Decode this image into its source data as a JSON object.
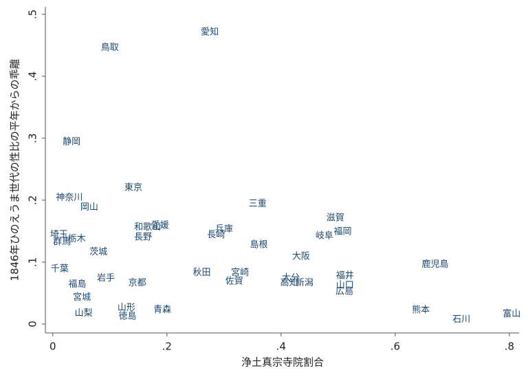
{
  "chart_data": {
    "type": "scatter",
    "x_label": "浄土真宗寺院割合",
    "y_label": "1846年ひのえうま世代の性比の平年からの乖離",
    "color": "#1a476f",
    "xlim": [
      -0.013,
      0.817
    ],
    "ylim": [
      -0.0144,
      0.512
    ],
    "xticks": [
      0,
      {
        "value": 0.2,
        "label": ".2"
      },
      {
        "value": 0.4,
        "label": ".4"
      },
      {
        "value": 0.6,
        "label": ".6"
      },
      {
        "value": 0.8,
        "label": ".8"
      }
    ],
    "yticks": [
      0,
      {
        "value": 0.1,
        "label": ".1"
      },
      {
        "value": 0.2,
        "label": ".2"
      },
      {
        "value": 0.3,
        "label": ".3"
      },
      {
        "value": 0.4,
        "label": ".4"
      },
      {
        "value": 0.5,
        "label": ".5"
      }
    ],
    "labels": [
      "愛知",
      "鳥取",
      "静岡",
      "東京",
      "神奈川",
      "岡山",
      "三重",
      "滋賀",
      "福岡",
      "岐阜",
      "兵庫",
      "長崎",
      "愛媛",
      "和歌山",
      "長野",
      "島根",
      "大阪",
      "埼玉",
      "群馬",
      "栃木",
      "茨城",
      "鹿児島",
      "千葉",
      "秋田",
      "宮崎",
      "佐賀",
      "岩手",
      "福島",
      "京都",
      "大分",
      "高知",
      "新潟",
      "福井",
      "山口",
      "広島",
      "宮城",
      "熊本",
      "山形",
      "青森",
      "山梨",
      "徳島",
      "石川",
      "富山"
    ],
    "x": [
      0.275,
      0.1,
      0.033,
      0.141,
      0.029,
      0.064,
      0.359,
      0.495,
      0.508,
      0.476,
      0.3,
      0.286,
      0.188,
      0.166,
      0.158,
      0.361,
      0.435,
      0.011,
      0.016,
      0.042,
      0.08,
      0.67,
      0.012,
      0.261,
      0.328,
      0.318,
      0.093,
      0.043,
      0.148,
      0.417,
      0.414,
      0.441,
      0.512,
      0.512,
      0.511,
      0.051,
      0.645,
      0.129,
      0.192,
      0.054,
      0.131,
      0.716,
      0.804
    ],
    "values": [
      0.471,
      0.446,
      0.294,
      0.22,
      0.204,
      0.188,
      0.194,
      0.171,
      0.149,
      0.142,
      0.153,
      0.144,
      0.159,
      0.156,
      0.14,
      0.128,
      0.109,
      0.144,
      0.132,
      0.137,
      0.116,
      0.096,
      0.089,
      0.083,
      0.083,
      0.069,
      0.074,
      0.064,
      0.066,
      0.074,
      0.066,
      0.066,
      0.078,
      0.062,
      0.052,
      0.043,
      0.022,
      0.026,
      0.023,
      0.017,
      0.012,
      0.007,
      0.016
    ]
  }
}
